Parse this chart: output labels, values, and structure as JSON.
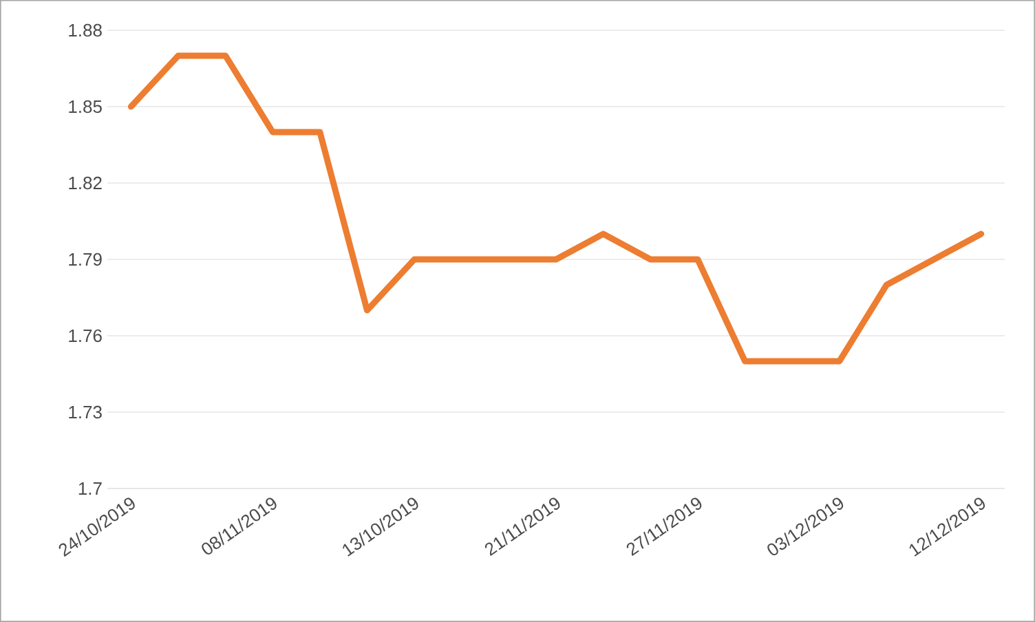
{
  "chart_data": {
    "type": "line",
    "categories": [
      "24/10/2019",
      null,
      null,
      "08/11/2019",
      null,
      null,
      "13/10/2019",
      null,
      null,
      "21/11/2019",
      null,
      null,
      "27/11/2019",
      null,
      null,
      "03/12/2019",
      null,
      null,
      "12/12/2019"
    ],
    "values": [
      1.85,
      1.87,
      1.87,
      1.84,
      1.84,
      1.77,
      1.79,
      1.79,
      1.79,
      1.79,
      1.8,
      1.79,
      1.79,
      1.75,
      1.75,
      1.75,
      1.78,
      1.79,
      1.8
    ],
    "color": "#ed7d31",
    "ylim": [
      1.7,
      1.88
    ],
    "yticks": [
      1.7,
      1.73,
      1.76,
      1.79,
      1.82,
      1.85,
      1.88
    ],
    "grid": "y"
  }
}
